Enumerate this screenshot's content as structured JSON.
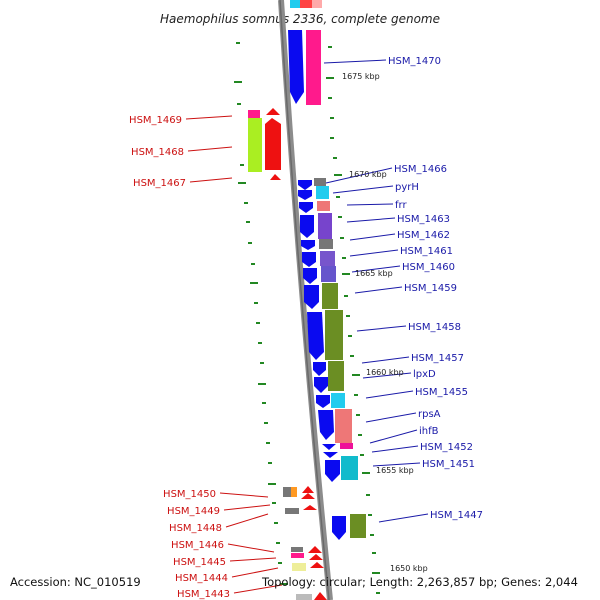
{
  "title": "Haemophilus somnus 2336, complete genome",
  "accession": "Accession: NC_010519",
  "summary": "Topology: circular; Length: 2,263,857 bp; Genes: 2,044",
  "colors": {
    "backbone": "#8c8c8c",
    "forward_gene": "#0a0af0",
    "reverse_gene": "#ee1111",
    "tick": "#228822",
    "label_forward": "#1a1aa8",
    "label_reverse": "#cc1111"
  },
  "scale_marks": [
    "1675 kbp",
    "1670 kbp",
    "1665 kbp",
    "1660 kbp",
    "1655 kbp",
    "1650 kbp"
  ],
  "forward_genes": [
    "HSM_1470",
    "HSM_1466",
    "pyrH",
    "frr",
    "HSM_1463",
    "HSM_1462",
    "HSM_1461",
    "HSM_1460",
    "HSM_1459",
    "HSM_1458",
    "HSM_1457",
    "lpxD",
    "HSM_1455",
    "rpsA",
    "ihfB",
    "HSM_1452",
    "HSM_1451",
    "HSM_1447"
  ],
  "reverse_genes": [
    "HSM_1469",
    "HSM_1468",
    "HSM_1467",
    "HSM_1450",
    "HSM_1449",
    "HSM_1448",
    "HSM_1446",
    "HSM_1445",
    "HSM_1444",
    "HSM_1443"
  ]
}
